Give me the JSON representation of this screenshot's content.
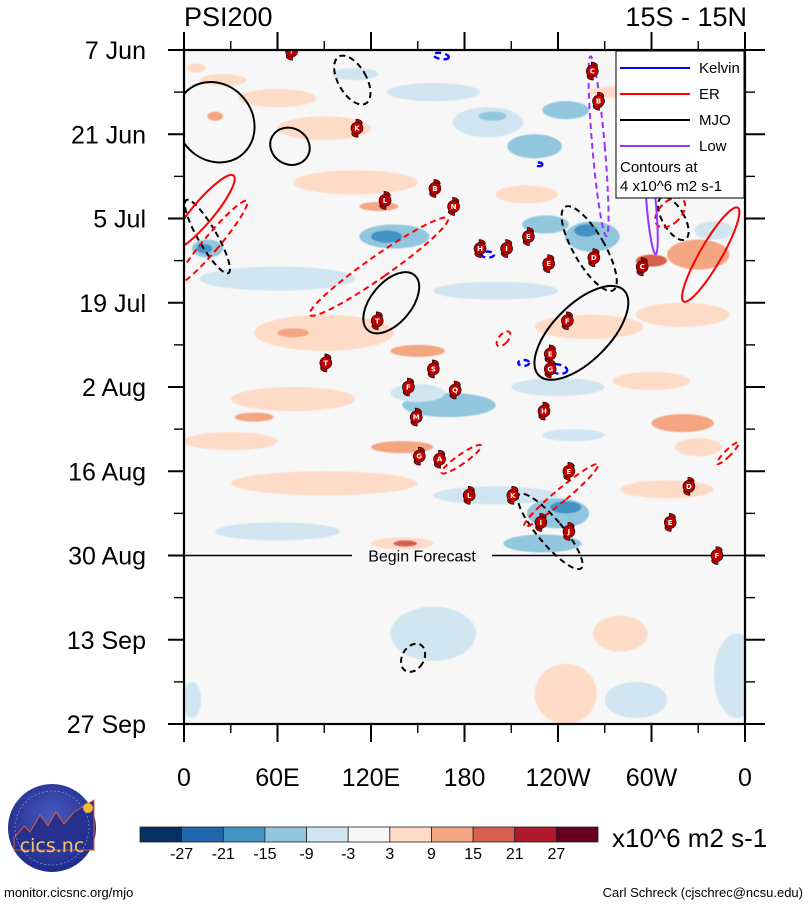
{
  "chart_data": {
    "type": "heatmap",
    "title_left": "PSI200",
    "title_right": "15S - 15N",
    "xlabel": "",
    "ylabel": "",
    "x_range": [
      0,
      360
    ],
    "x_ticks": [
      {
        "value": 0,
        "label": "0"
      },
      {
        "value": 60,
        "label": "60E"
      },
      {
        "value": 120,
        "label": "120E"
      },
      {
        "value": 180,
        "label": "180"
      },
      {
        "value": 240,
        "label": "120W"
      },
      {
        "value": 300,
        "label": "60W"
      },
      {
        "value": 360,
        "label": "0"
      }
    ],
    "y_range_days": [
      0,
      112
    ],
    "y_ticks": [
      {
        "day": 0,
        "label": "7 Jun"
      },
      {
        "day": 14,
        "label": "21 Jun"
      },
      {
        "day": 28,
        "label": "5 Jul"
      },
      {
        "day": 42,
        "label": "19 Jul"
      },
      {
        "day": 56,
        "label": "2 Aug"
      },
      {
        "day": 70,
        "label": "16 Aug"
      },
      {
        "day": 84,
        "label": "30 Aug"
      },
      {
        "day": 98,
        "label": "13 Sep"
      },
      {
        "day": 112,
        "label": "27 Sep"
      }
    ],
    "forecast_start_day": 84,
    "forecast_label": "Begin Forecast",
    "colorbar": {
      "levels": [
        -27,
        -21,
        -15,
        -9,
        -3,
        3,
        9,
        15,
        21,
        27
      ],
      "labels": [
        "-27",
        "-21",
        "-15",
        "-9",
        "-3",
        "3",
        "9",
        "15",
        "21",
        "27"
      ],
      "colors": [
        "#053061",
        "#2166ac",
        "#4393c3",
        "#92c5de",
        "#d1e5f0",
        "#f7f7f7",
        "#fddbc7",
        "#f4a582",
        "#d6604d",
        "#b2182b",
        "#67001f"
      ],
      "units": "x10^6 m2 s-1"
    },
    "legend": {
      "placement": "top-right",
      "entries": [
        {
          "name": "Kelvin",
          "color": "#0000ff"
        },
        {
          "name": "ER",
          "color": "#ff0000"
        },
        {
          "name": "MJO",
          "color": "#000000"
        },
        {
          "name": "Low",
          "color": "#9933ff"
        }
      ],
      "note_line1": "Contours at",
      "note_line2": "4 x10^6 m2 s-1"
    },
    "anomaly_patches": [
      {
        "lon": 8,
        "day": 3,
        "dlon": 12,
        "dday": 1.5,
        "value": 5
      },
      {
        "lon": 25,
        "day": 5,
        "dlon": 30,
        "dday": 2,
        "value": 5
      },
      {
        "lon": 60,
        "day": 8,
        "dlon": 50,
        "dday": 3,
        "value": 5
      },
      {
        "lon": 20,
        "day": 11,
        "dlon": 10,
        "dday": 1.5,
        "value": 10
      },
      {
        "lon": 90,
        "day": 13,
        "dlon": 60,
        "dday": 4,
        "value": 5
      },
      {
        "lon": 110,
        "day": 4,
        "dlon": 30,
        "dday": 2,
        "value": -5
      },
      {
        "lon": 160,
        "day": 7,
        "dlon": 60,
        "dday": 3,
        "value": -5
      },
      {
        "lon": 195,
        "day": 12,
        "dlon": 45,
        "dday": 5,
        "value": -5
      },
      {
        "lon": 225,
        "day": 16,
        "dlon": 35,
        "dday": 4,
        "value": -10
      },
      {
        "lon": 245,
        "day": 10,
        "dlon": 30,
        "dday": 3,
        "value": -10
      },
      {
        "lon": 275,
        "day": 7,
        "dlon": 30,
        "dday": 2,
        "value": 5
      },
      {
        "lon": 198,
        "day": 11,
        "dlon": 18,
        "dday": 1.5,
        "value": -10
      },
      {
        "lon": 110,
        "day": 22,
        "dlon": 80,
        "dday": 4,
        "value": 5
      },
      {
        "lon": 125,
        "day": 26,
        "dlon": 25,
        "dday": 1.5,
        "value": 10
      },
      {
        "lon": 15,
        "day": 33,
        "dlon": 20,
        "dday": 3,
        "value": -10
      },
      {
        "lon": 13,
        "day": 33,
        "dlon": 10,
        "dday": 1.5,
        "value": -16
      },
      {
        "lon": 135,
        "day": 31,
        "dlon": 45,
        "dday": 4,
        "value": -10
      },
      {
        "lon": 130,
        "day": 31,
        "dlon": 20,
        "dday": 2,
        "value": -16
      },
      {
        "lon": 220,
        "day": 24,
        "dlon": 40,
        "dday": 3,
        "value": 5
      },
      {
        "lon": 232,
        "day": 29,
        "dlon": 30,
        "dday": 3,
        "value": -10
      },
      {
        "lon": 262,
        "day": 31,
        "dlon": 35,
        "dday": 5,
        "value": -10
      },
      {
        "lon": 258,
        "day": 30,
        "dlon": 15,
        "dday": 2,
        "value": -16
      },
      {
        "lon": 300,
        "day": 35,
        "dlon": 20,
        "dday": 2,
        "value": 16
      },
      {
        "lon": 330,
        "day": 34,
        "dlon": 40,
        "dday": 5,
        "value": 10
      },
      {
        "lon": 340,
        "day": 30,
        "dlon": 25,
        "dday": 3,
        "value": -5
      },
      {
        "lon": 60,
        "day": 38,
        "dlon": 100,
        "dday": 4,
        "value": -5
      },
      {
        "lon": 200,
        "day": 40,
        "dlon": 80,
        "dday": 3,
        "value": -5
      },
      {
        "lon": 90,
        "day": 47,
        "dlon": 90,
        "dday": 6,
        "value": 5
      },
      {
        "lon": 70,
        "day": 47,
        "dlon": 20,
        "dday": 1.5,
        "value": 10
      },
      {
        "lon": 150,
        "day": 50,
        "dlon": 35,
        "dday": 2,
        "value": 10
      },
      {
        "lon": 260,
        "day": 46,
        "dlon": 70,
        "dday": 4,
        "value": 5
      },
      {
        "lon": 320,
        "day": 44,
        "dlon": 60,
        "dday": 4,
        "value": 5
      },
      {
        "lon": 70,
        "day": 58,
        "dlon": 80,
        "dday": 4,
        "value": 5
      },
      {
        "lon": 45,
        "day": 61,
        "dlon": 25,
        "dday": 1.5,
        "value": 10
      },
      {
        "lon": 170,
        "day": 59,
        "dlon": 60,
        "dday": 4,
        "value": -10
      },
      {
        "lon": 150,
        "day": 57,
        "dlon": 35,
        "dday": 3,
        "value": -5
      },
      {
        "lon": 240,
        "day": 56,
        "dlon": 60,
        "dday": 3,
        "value": -5
      },
      {
        "lon": 300,
        "day": 55,
        "dlon": 50,
        "dday": 3,
        "value": 5
      },
      {
        "lon": 30,
        "day": 65,
        "dlon": 60,
        "dday": 3,
        "value": 5
      },
      {
        "lon": 140,
        "day": 66,
        "dlon": 40,
        "dday": 2,
        "value": 10
      },
      {
        "lon": 250,
        "day": 64,
        "dlon": 40,
        "dday": 2,
        "value": -5
      },
      {
        "lon": 320,
        "day": 62,
        "dlon": 40,
        "dday": 3,
        "value": 10
      },
      {
        "lon": 330,
        "day": 66,
        "dlon": 30,
        "dday": 3,
        "value": 5
      },
      {
        "lon": 90,
        "day": 72,
        "dlon": 120,
        "dday": 4,
        "value": 5
      },
      {
        "lon": 200,
        "day": 74,
        "dlon": 80,
        "dday": 3,
        "value": -5
      },
      {
        "lon": 240,
        "day": 77,
        "dlon": 40,
        "dday": 5,
        "value": -10
      },
      {
        "lon": 245,
        "day": 76,
        "dlon": 20,
        "dday": 2,
        "value": -16
      },
      {
        "lon": 310,
        "day": 73,
        "dlon": 60,
        "dday": 3,
        "value": 5
      },
      {
        "lon": 60,
        "day": 80,
        "dlon": 80,
        "dday": 3,
        "value": -5
      },
      {
        "lon": 140,
        "day": 82,
        "dlon": 40,
        "dday": 2,
        "value": 5
      },
      {
        "lon": 142,
        "day": 82,
        "dlon": 15,
        "dday": 1,
        "value": 16
      },
      {
        "lon": 230,
        "day": 82,
        "dlon": 50,
        "dday": 3,
        "value": -10
      },
      {
        "lon": 160,
        "day": 97,
        "dlon": 55,
        "dday": 9,
        "value": -5
      },
      {
        "lon": 280,
        "day": 97,
        "dlon": 35,
        "dday": 6,
        "value": 5
      },
      {
        "lon": 245,
        "day": 107,
        "dlon": 40,
        "dday": 10,
        "value": 5
      },
      {
        "lon": 355,
        "day": 104,
        "dlon": 30,
        "dday": 14,
        "value": -5
      },
      {
        "lon": 290,
        "day": 108,
        "dlon": 40,
        "dday": 6,
        "value": -5
      },
      {
        "lon": 5,
        "day": 108,
        "dlon": 12,
        "dday": 6,
        "value": -5
      }
    ],
    "contours": [
      {
        "type": "MJO",
        "sign": "positive",
        "lon": 20,
        "day": 12,
        "dlon": 48,
        "dday": 14,
        "angle": -40
      },
      {
        "type": "MJO",
        "sign": "positive",
        "lon": 68,
        "day": 16,
        "dlon": 26,
        "dday": 6,
        "angle": 30
      },
      {
        "type": "MJO",
        "sign": "negative",
        "lon": 108,
        "day": 5,
        "dlon": 18,
        "dday": 9,
        "angle": -30
      },
      {
        "type": "MJO",
        "sign": "negative",
        "lon": 15,
        "day": 31,
        "dlon": 12,
        "dday": 14,
        "angle": -30
      },
      {
        "type": "MJO",
        "sign": "positive",
        "lon": 133,
        "day": 42,
        "dlon": 26,
        "dday": 12,
        "angle": 40
      },
      {
        "type": "MJO",
        "sign": "positive",
        "lon": 255,
        "day": 47,
        "dlon": 36,
        "dday": 20,
        "angle": 45
      },
      {
        "type": "MJO",
        "sign": "negative",
        "lon": 260,
        "day": 33,
        "dlon": 20,
        "dday": 16,
        "angle": -30
      },
      {
        "type": "MJO",
        "sign": "negative",
        "lon": 314,
        "day": 28,
        "dlon": 14,
        "dday": 8,
        "angle": -30
      },
      {
        "type": "MJO",
        "sign": "negative",
        "lon": 235,
        "day": 80,
        "dlon": 16,
        "dday": 16,
        "angle": -40
      },
      {
        "type": "MJO",
        "sign": "negative",
        "lon": 147,
        "day": 101,
        "dlon": 14,
        "dday": 5,
        "angle": 30
      },
      {
        "type": "ER",
        "sign": "positive",
        "lon": 12,
        "day": 27,
        "dlon": 14,
        "dday": 16,
        "angle": 40
      },
      {
        "type": "ER",
        "sign": "negative",
        "lon": 18,
        "day": 32,
        "dlon": 10,
        "dday": 18,
        "angle": 40
      },
      {
        "type": "ER",
        "sign": "negative",
        "lon": 125,
        "day": 36,
        "dlon": 14,
        "dday": 28,
        "angle": 55
      },
      {
        "type": "ER",
        "sign": "negative",
        "lon": 205,
        "day": 48,
        "dlon": 6,
        "dday": 3,
        "angle": 40
      },
      {
        "type": "ER",
        "sign": "negative",
        "lon": 178,
        "day": 68,
        "dlon": 6,
        "dday": 8,
        "angle": 55
      },
      {
        "type": "ER",
        "sign": "negative",
        "lon": 242,
        "day": 74,
        "dlon": 8,
        "dday": 16,
        "angle": 50
      },
      {
        "type": "ER",
        "sign": "negative",
        "lon": 349,
        "day": 67,
        "dlon": 4,
        "dday": 5,
        "angle": 45
      },
      {
        "type": "ER",
        "sign": "positive",
        "lon": 338,
        "day": 34,
        "dlon": 14,
        "dday": 18,
        "angle": 30
      },
      {
        "type": "ER",
        "sign": "negative",
        "lon": 312,
        "day": 27,
        "dlon": 14,
        "dday": 6,
        "angle": 45
      },
      {
        "type": "Kelvin",
        "sign": "negative",
        "lon": 195,
        "day": 34,
        "dlon": 8,
        "dday": 1,
        "angle": 0
      },
      {
        "type": "Kelvin",
        "sign": "negative",
        "lon": 240,
        "day": 53,
        "dlon": 12,
        "dday": 1.5,
        "angle": 10
      },
      {
        "type": "Kelvin",
        "sign": "negative",
        "lon": 218,
        "day": 52,
        "dlon": 7,
        "dday": 1,
        "angle": 0
      },
      {
        "type": "Kelvin",
        "sign": "negative",
        "lon": 228,
        "day": 19,
        "dlon": 4,
        "dday": 0.6,
        "angle": 0
      },
      {
        "type": "Kelvin",
        "sign": "negative",
        "lon": 165,
        "day": 1,
        "dlon": 10,
        "dday": 1,
        "angle": 10
      },
      {
        "type": "Low",
        "sign": "negative",
        "lon": 266,
        "day": 16,
        "dlon": 8,
        "dday": 30,
        "angle": -5
      },
      {
        "type": "Low",
        "sign": "positive",
        "lon": 300,
        "day": 26,
        "dlon": 6,
        "dday": 16,
        "angle": -5
      }
    ],
    "storms": [
      {
        "label": "C",
        "lon": 262,
        "day": 3.5
      },
      {
        "label": "B",
        "lon": 266,
        "day": 8.5
      },
      {
        "label": "K",
        "lon": 111,
        "day": 13
      },
      {
        "label": "B",
        "lon": 161,
        "day": 23
      },
      {
        "label": "L",
        "lon": 129,
        "day": 25
      },
      {
        "label": "N",
        "lon": 173,
        "day": 26
      },
      {
        "label": "E",
        "lon": 221,
        "day": 31
      },
      {
        "label": "H",
        "lon": 190,
        "day": 33
      },
      {
        "label": "I",
        "lon": 207,
        "day": 33
      },
      {
        "label": "D",
        "lon": 263,
        "day": 34.5
      },
      {
        "label": "E",
        "lon": 234,
        "day": 35.5
      },
      {
        "label": "C",
        "lon": 294,
        "day": 36
      },
      {
        "label": "T",
        "lon": 124,
        "day": 45
      },
      {
        "label": "F",
        "lon": 246,
        "day": 45
      },
      {
        "label": "E",
        "lon": 235,
        "day": 50.5
      },
      {
        "label": "G",
        "lon": 235,
        "day": 53
      },
      {
        "label": "T",
        "lon": 91,
        "day": 52
      },
      {
        "label": "S",
        "lon": 160,
        "day": 53
      },
      {
        "label": "F",
        "lon": 144,
        "day": 56
      },
      {
        "label": "Q",
        "lon": 174,
        "day": 56.5
      },
      {
        "label": "M",
        "lon": 149,
        "day": 61
      },
      {
        "label": "H",
        "lon": 231,
        "day": 60
      },
      {
        "label": "G",
        "lon": 151,
        "day": 67.5
      },
      {
        "label": "A",
        "lon": 164,
        "day": 68
      },
      {
        "label": "E",
        "lon": 247,
        "day": 70
      },
      {
        "label": "D",
        "lon": 324,
        "day": 72.5
      },
      {
        "label": "L",
        "lon": 183,
        "day": 74
      },
      {
        "label": "K",
        "lon": 211,
        "day": 74
      },
      {
        "label": "I",
        "lon": 229,
        "day": 78.5
      },
      {
        "label": "J",
        "lon": 247,
        "day": 80
      },
      {
        "label": "E",
        "lon": 312,
        "day": 78.5
      },
      {
        "label": "F",
        "lon": 342,
        "day": 84
      },
      {
        "label": "?",
        "lon": 69,
        "day": 0.2
      }
    ]
  },
  "footer": {
    "left": "monitor.cicsnc.org/mjo",
    "right": "Carl Schreck (cjschrec@ncsu.edu)"
  },
  "logo": {
    "text": "cics.nc",
    "ring_text": "Cooperative Institute for Climate and Satellites"
  }
}
